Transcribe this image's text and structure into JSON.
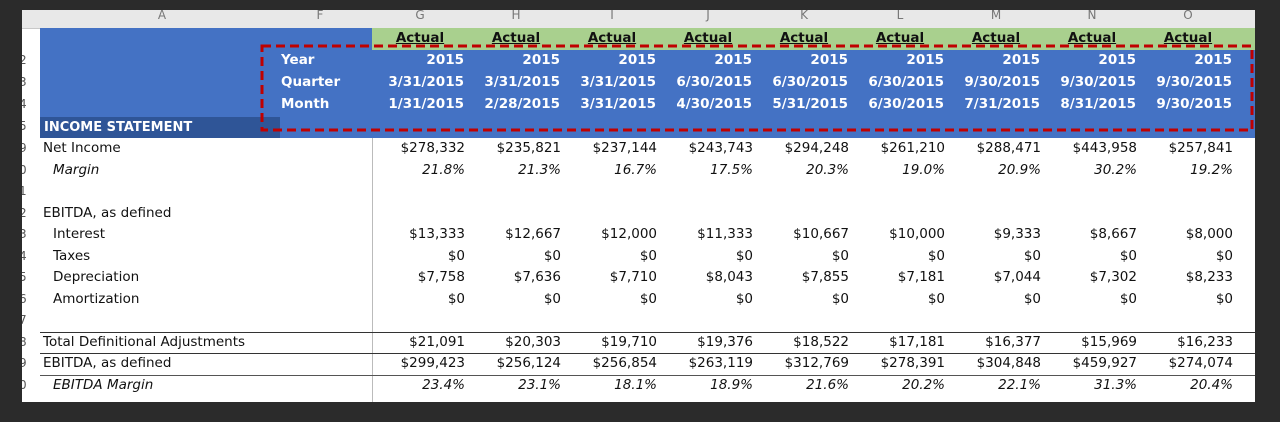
{
  "column_headers": [
    "A",
    "F",
    "G",
    "H",
    "I",
    "J",
    "K",
    "L",
    "M",
    "N",
    "O"
  ],
  "row_numbers": [
    "2",
    "3",
    "4",
    "5",
    "9",
    "0",
    "1",
    "2",
    "3",
    "4",
    "5",
    "6",
    "7",
    "8",
    "9",
    "0"
  ],
  "header": {
    "actual": [
      "Actual",
      "Actual",
      "Actual",
      "Actual",
      "Actual",
      "Actual",
      "Actual",
      "Actual",
      "Actual"
    ],
    "year_label": "Year",
    "year": [
      "2015",
      "2015",
      "2015",
      "2015",
      "2015",
      "2015",
      "2015",
      "2015",
      "2015"
    ],
    "quarter_label": "Quarter",
    "quarter": [
      "3/31/2015",
      "3/31/2015",
      "3/31/2015",
      "6/30/2015",
      "6/30/2015",
      "6/30/2015",
      "9/30/2015",
      "9/30/2015",
      "9/30/2015"
    ],
    "month_label": "Month",
    "month": [
      "1/31/2015",
      "2/28/2015",
      "3/31/2015",
      "4/30/2015",
      "5/31/2015",
      "6/30/2015",
      "7/31/2015",
      "8/31/2015",
      "9/30/2015"
    ]
  },
  "section_title": "INCOME STATEMENT",
  "rows": [
    {
      "label": "Net Income",
      "values": [
        "$278,332",
        "$235,821",
        "$237,144",
        "$243,743",
        "$294,248",
        "$261,210",
        "$288,471",
        "$443,958",
        "$257,841"
      ]
    },
    {
      "label": "Margin",
      "italic": true,
      "indent": true,
      "values": [
        "21.8%",
        "21.3%",
        "16.7%",
        "17.5%",
        "20.3%",
        "19.0%",
        "20.9%",
        "30.2%",
        "19.2%"
      ]
    },
    {
      "label": "EBITDA, as defined",
      "values": []
    },
    {
      "label": "Interest",
      "indent": true,
      "values": [
        "$13,333",
        "$12,667",
        "$12,000",
        "$11,333",
        "$10,667",
        "$10,000",
        "$9,333",
        "$8,667",
        "$8,000"
      ]
    },
    {
      "label": "Taxes",
      "indent": true,
      "values": [
        "$0",
        "$0",
        "$0",
        "$0",
        "$0",
        "$0",
        "$0",
        "$0",
        "$0"
      ]
    },
    {
      "label": "Depreciation",
      "indent": true,
      "values": [
        "$7,758",
        "$7,636",
        "$7,710",
        "$8,043",
        "$7,855",
        "$7,181",
        "$7,044",
        "$7,302",
        "$8,233"
      ]
    },
    {
      "label": "Amortization",
      "indent": true,
      "values": [
        "$0",
        "$0",
        "$0",
        "$0",
        "$0",
        "$0",
        "$0",
        "$0",
        "$0"
      ]
    },
    {
      "label": "Total Definitional Adjustments",
      "values": [
        "$21,091",
        "$20,303",
        "$19,710",
        "$19,376",
        "$18,522",
        "$17,181",
        "$16,377",
        "$15,969",
        "$16,233"
      ]
    },
    {
      "label": "EBITDA, as defined",
      "values": [
        "$299,423",
        "$256,124",
        "$256,854",
        "$263,119",
        "$312,769",
        "$278,391",
        "$304,848",
        "$459,927",
        "$274,074"
      ]
    },
    {
      "label": "EBITDA Margin",
      "italic": true,
      "indent": true,
      "values": [
        "23.4%",
        "23.1%",
        "18.1%",
        "18.9%",
        "21.6%",
        "20.2%",
        "22.1%",
        "31.3%",
        "20.4%"
      ]
    }
  ]
}
